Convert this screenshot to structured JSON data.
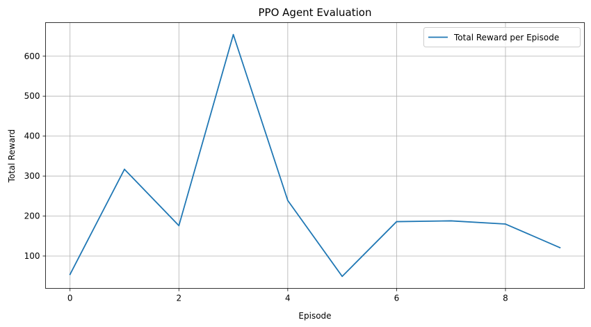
{
  "chart_data": {
    "type": "line",
    "title": "PPO Agent Evaluation",
    "xlabel": "Episode",
    "ylabel": "Total Reward",
    "x": [
      0,
      1,
      2,
      3,
      4,
      5,
      6,
      7,
      8,
      9
    ],
    "series": [
      {
        "name": "Total Reward per Episode",
        "color": "#1f77b4",
        "values": [
          54,
          317,
          176,
          654,
          239,
          49,
          186,
          188,
          180,
          121
        ]
      }
    ],
    "xlim": [
      -0.45,
      9.45
    ],
    "ylim": [
      19,
      684
    ],
    "xticks": [
      0,
      2,
      4,
      6,
      8
    ],
    "yticks": [
      100,
      200,
      300,
      400,
      500,
      600
    ],
    "grid": true,
    "legend": "upper right"
  }
}
